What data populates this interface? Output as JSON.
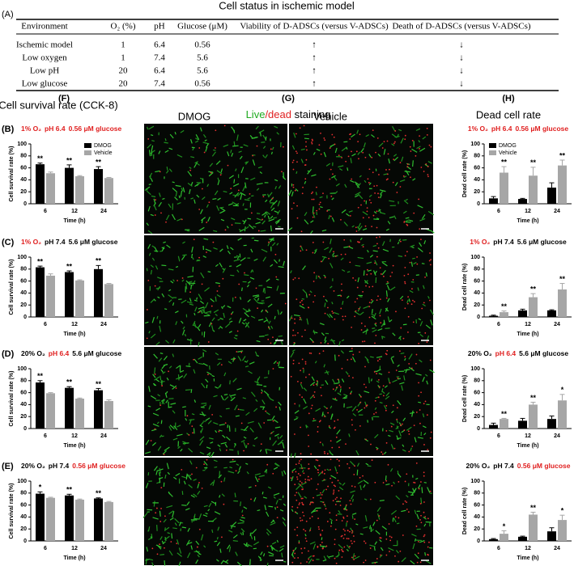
{
  "panel_a": {
    "label": "(A)",
    "title": "Cell status in ischemic model",
    "header": [
      "Environment",
      "O₂ (%)",
      "pH",
      "Glucose (μM)",
      "Viability of D-ADSCs (versus  V-ADSCs)",
      "Death of D-ADSCs (versus V-ADSCs)"
    ],
    "rows": [
      [
        "Ischemic model",
        "1",
        "6.4",
        "0.56",
        "↑",
        "↓"
      ],
      [
        "Low oxygen",
        "1",
        "7.4",
        "5.6",
        "↑",
        "↓"
      ],
      [
        "Low pH",
        "20",
        "6.4",
        "5.6",
        "↑",
        "↓"
      ],
      [
        "Low glucose",
        "20",
        "7.4",
        "0.56",
        "↑",
        "↓"
      ]
    ]
  },
  "sections": {
    "f_label": "(F)",
    "f_title": "Cell survival rate (CCK-8)",
    "g_label": "(G)",
    "g_title": [
      {
        "text": "Live",
        "color": "#1faa1f"
      },
      {
        "text": "/dead",
        "color": "#e02020"
      },
      {
        "text": " staining",
        "color": "#000000"
      }
    ],
    "g_left": "DMOG",
    "g_right": "Vehicle",
    "h_label": "(H)",
    "h_title": "Dead cell rate"
  },
  "chart_data": [
    {
      "type": "bar",
      "side": "left",
      "label": "(B)",
      "title": [
        {
          "text": "1% O₂",
          "color": "#e02020"
        },
        {
          "text": "pH 6.4",
          "color": "#e02020"
        },
        {
          "text": "0.56 μM glucose",
          "color": "#e02020"
        }
      ],
      "x_label": "Time (h)",
      "y_label": "Cell survival rate (%)",
      "categories": [
        "6",
        "12",
        "24"
      ],
      "ylim": [
        0,
        100
      ],
      "yticks": [
        0,
        20,
        40,
        60,
        80,
        100
      ],
      "series": [
        {
          "name": "DMOG",
          "color": "#000000",
          "values": [
            66,
            60,
            58
          ],
          "errors": [
            2,
            5,
            4
          ]
        },
        {
          "name": "Vehicle",
          "color": "#a6a6a6",
          "values": [
            51,
            46,
            43
          ],
          "errors": [
            2,
            1,
            1
          ]
        }
      ],
      "sig": [
        "**",
        "**",
        "**"
      ],
      "sig_series": 0,
      "legend": "upper right"
    },
    {
      "type": "bar",
      "side": "left",
      "label": "(C)",
      "title": [
        {
          "text": "1% O₂",
          "color": "#e02020"
        },
        {
          "text": "pH 7.4",
          "color": "#000000"
        },
        {
          "text": "5.6 μM glucose",
          "color": "#000000"
        }
      ],
      "x_label": "Time (h)",
      "y_label": "Cell survival rate (%)",
      "categories": [
        "6",
        "12",
        "24"
      ],
      "ylim": [
        0,
        100
      ],
      "yticks": [
        0,
        20,
        40,
        60,
        80,
        100
      ],
      "series": [
        {
          "name": "DMOG",
          "color": "#000000",
          "values": [
            83,
            75,
            80
          ],
          "errors": [
            2,
            2,
            6
          ]
        },
        {
          "name": "Vehicle",
          "color": "#a6a6a6",
          "values": [
            69,
            61,
            55
          ],
          "errors": [
            3,
            1,
            1
          ]
        }
      ],
      "sig": [
        "**",
        "**",
        "**"
      ],
      "sig_series": 0
    },
    {
      "type": "bar",
      "side": "left",
      "label": "(D)",
      "title": [
        {
          "text": "20% O₂",
          "color": "#000000"
        },
        {
          "text": "pH 6.4",
          "color": "#e02020"
        },
        {
          "text": "5.6 μM glucose",
          "color": "#000000"
        }
      ],
      "x_label": "Time (h)",
      "y_label": "Cell survival rate (%)",
      "categories": [
        "6",
        "12",
        "24"
      ],
      "ylim": [
        0,
        100
      ],
      "yticks": [
        0,
        20,
        40,
        60,
        80,
        100
      ],
      "series": [
        {
          "name": "DMOG",
          "color": "#000000",
          "values": [
            77,
            68,
            64
          ],
          "errors": [
            3,
            2,
            3
          ]
        },
        {
          "name": "Vehicle",
          "color": "#a6a6a6",
          "values": [
            59,
            50,
            46
          ],
          "errors": [
            1,
            1,
            2
          ]
        }
      ],
      "sig": [
        "**",
        "**",
        "**"
      ],
      "sig_series": 0
    },
    {
      "type": "bar",
      "side": "left",
      "label": "(E)",
      "title": [
        {
          "text": "20% O₂",
          "color": "#000000"
        },
        {
          "text": "pH 7.4",
          "color": "#000000"
        },
        {
          "text": "0.56 μM glucose",
          "color": "#e02020"
        }
      ],
      "x_label": "Time (h)",
      "y_label": "Cell survival rate (%)",
      "categories": [
        "6",
        "12",
        "24"
      ],
      "ylim": [
        0,
        100
      ],
      "yticks": [
        0,
        20,
        40,
        60,
        80,
        100
      ],
      "series": [
        {
          "name": "DMOG",
          "color": "#000000",
          "values": [
            79,
            76,
            71
          ],
          "errors": [
            3,
            2,
            1
          ]
        },
        {
          "name": "Vehicle",
          "color": "#a6a6a6",
          "values": [
            72,
            69,
            65
          ],
          "errors": [
            1,
            1,
            1
          ]
        }
      ],
      "sig": [
        "*",
        "**",
        "**"
      ],
      "sig_series": 0
    },
    {
      "type": "bar",
      "side": "right",
      "title": [
        {
          "text": "1% O₂",
          "color": "#e02020"
        },
        {
          "text": "pH 6.4",
          "color": "#e02020"
        },
        {
          "text": "0.56 μM glucose",
          "color": "#e02020"
        }
      ],
      "x_label": "Time (h)",
      "y_label": "Dead cell rate (%)",
      "categories": [
        "6",
        "12",
        "24"
      ],
      "ylim": [
        0,
        100
      ],
      "yticks": [
        0,
        20,
        40,
        60,
        80,
        100
      ],
      "series": [
        {
          "name": "DMOG",
          "color": "#000000",
          "values": [
            9,
            8,
            27
          ],
          "errors": [
            3,
            1,
            8
          ]
        },
        {
          "name": "Vehicle",
          "color": "#a6a6a6",
          "values": [
            52,
            47,
            64
          ],
          "errors": [
            10,
            14,
            9
          ]
        }
      ],
      "sig": [
        "**",
        "**",
        "**"
      ],
      "sig_series": 1,
      "legend": "upper left"
    },
    {
      "type": "bar",
      "side": "right",
      "title": [
        {
          "text": "1% O₂",
          "color": "#e02020"
        },
        {
          "text": "pH 7.4",
          "color": "#000000"
        },
        {
          "text": "5.6 μM glucose",
          "color": "#000000"
        }
      ],
      "x_label": "Time (h)",
      "y_label": "Dead cell rate (%)",
      "categories": [
        "6",
        "12",
        "24"
      ],
      "ylim": [
        0,
        100
      ],
      "yticks": [
        0,
        20,
        40,
        60,
        80,
        100
      ],
      "series": [
        {
          "name": "DMOG",
          "color": "#000000",
          "values": [
            2,
            11,
            11
          ],
          "errors": [
            1,
            2,
            1
          ]
        },
        {
          "name": "Vehicle",
          "color": "#a6a6a6",
          "values": [
            8,
            33,
            46
          ],
          "errors": [
            2,
            6,
            10
          ]
        }
      ],
      "sig": [
        "**",
        "**",
        "**"
      ],
      "sig_series": 1
    },
    {
      "type": "bar",
      "side": "right",
      "title": [
        {
          "text": "20% O₂",
          "color": "#000000"
        },
        {
          "text": "pH 6.4",
          "color": "#e02020"
        },
        {
          "text": "5.6 μM glucose",
          "color": "#000000"
        }
      ],
      "x_label": "Time (h)",
      "y_label": "Dead cell rate (%)",
      "categories": [
        "6",
        "12",
        "24"
      ],
      "ylim": [
        0,
        100
      ],
      "yticks": [
        0,
        20,
        40,
        60,
        80,
        100
      ],
      "series": [
        {
          "name": "DMOG",
          "color": "#000000",
          "values": [
            6,
            13,
            16
          ],
          "errors": [
            3,
            4,
            5
          ]
        },
        {
          "name": "Vehicle",
          "color": "#a6a6a6",
          "values": [
            16,
            40,
            47
          ],
          "errors": [
            1,
            4,
            10
          ]
        }
      ],
      "sig": [
        "**",
        "**",
        "*"
      ],
      "sig_series": 1
    },
    {
      "type": "bar",
      "side": "right",
      "title": [
        {
          "text": "20% O₂",
          "color": "#000000"
        },
        {
          "text": "pH 7.4",
          "color": "#000000"
        },
        {
          "text": "0.56 μM glucose",
          "color": "#e02020"
        }
      ],
      "x_label": "Time (h)",
      "y_label": "Dead cell rate (%)",
      "categories": [
        "6",
        "12",
        "24"
      ],
      "ylim": [
        0,
        100
      ],
      "yticks": [
        0,
        20,
        40,
        60,
        80,
        100
      ],
      "series": [
        {
          "name": "DMOG",
          "color": "#000000",
          "values": [
            3,
            7,
            16
          ],
          "errors": [
            1,
            1,
            6
          ]
        },
        {
          "name": "Vehicle",
          "color": "#a6a6a6",
          "values": [
            12,
            44,
            35
          ],
          "errors": [
            5,
            4,
            8
          ]
        }
      ],
      "sig": [
        "*",
        "**",
        "*"
      ],
      "sig_series": 1
    }
  ]
}
